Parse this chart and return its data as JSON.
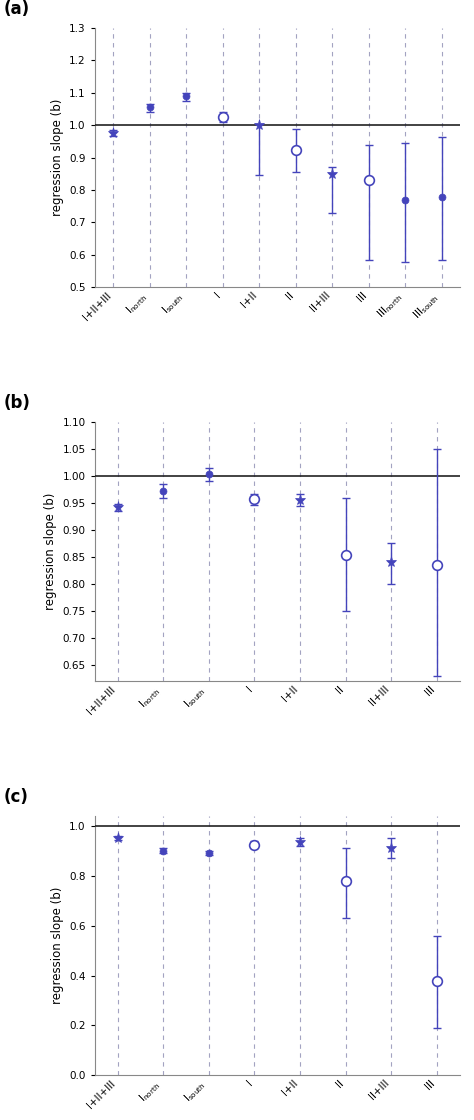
{
  "panel_a": {
    "label": "(a)",
    "xtick_labels": [
      "I+II+III",
      "I_north",
      "I_south",
      "I",
      "I+II",
      "II",
      "II+III",
      "III",
      "III_north",
      "III_south"
    ],
    "values": [
      0.975,
      1.055,
      1.09,
      1.025,
      1.002,
      0.922,
      0.849,
      0.83,
      0.768,
      0.778
    ],
    "ci_low": [
      0.966,
      1.04,
      1.074,
      1.01,
      0.845,
      0.855,
      0.73,
      0.585,
      0.578,
      0.585
    ],
    "ci_high": [
      0.984,
      1.065,
      1.1,
      1.04,
      1.005,
      0.988,
      0.87,
      0.94,
      0.945,
      0.965
    ],
    "marker_types": [
      "star",
      "dot",
      "dot",
      "circle",
      "star",
      "circle",
      "star",
      "circle",
      "dot",
      "dot"
    ],
    "ylim": [
      0.5,
      1.3
    ],
    "yticks": [
      0.5,
      0.6,
      0.7,
      0.8,
      0.9,
      1.0,
      1.1,
      1.2,
      1.3
    ],
    "ylabel": "regression slope (b)"
  },
  "panel_b": {
    "label": "(b)",
    "xtick_labels": [
      "I+II+III",
      "I_north",
      "I_south",
      "I",
      "I+II",
      "II",
      "II+III",
      "III"
    ],
    "values": [
      0.942,
      0.973,
      1.003,
      0.958,
      0.956,
      0.853,
      0.841,
      0.835
    ],
    "ci_low": [
      0.936,
      0.96,
      0.99,
      0.947,
      0.945,
      0.75,
      0.8,
      0.63
    ],
    "ci_high": [
      0.948,
      0.985,
      1.015,
      0.967,
      0.966,
      0.96,
      0.875,
      1.05
    ],
    "marker_types": [
      "star",
      "dot",
      "dot",
      "circle",
      "star",
      "circle",
      "star",
      "circle"
    ],
    "ylim": [
      0.62,
      1.1
    ],
    "yticks": [
      0.65,
      0.7,
      0.75,
      0.8,
      0.85,
      0.9,
      0.95,
      1.0,
      1.05,
      1.1
    ],
    "ylabel": "regression slope (b)"
  },
  "panel_c": {
    "label": "(c)",
    "xtick_labels": [
      "I+II+III",
      "I_north",
      "I_south",
      "I",
      "I+II",
      "II",
      "II+III",
      "III"
    ],
    "values": [
      0.952,
      0.9,
      0.892,
      0.925,
      0.936,
      0.778,
      0.91,
      0.378
    ],
    "ci_low": [
      0.942,
      0.89,
      0.882,
      0.91,
      0.92,
      0.63,
      0.872,
      0.19
    ],
    "ci_high": [
      0.96,
      0.91,
      0.901,
      0.94,
      0.95,
      0.91,
      0.95,
      0.56
    ],
    "marker_types": [
      "star",
      "dot",
      "dot",
      "circle",
      "star",
      "circle",
      "star",
      "circle"
    ],
    "ylim": [
      0.0,
      1.04
    ],
    "yticks": [
      0.0,
      0.2,
      0.4,
      0.6,
      0.8,
      1.0
    ],
    "ylabel": "regression slope (b)"
  },
  "blue_color": "#4444bb",
  "line_color": "#222222",
  "grid_color": "#9999bb",
  "ref_line_y": 1.0
}
